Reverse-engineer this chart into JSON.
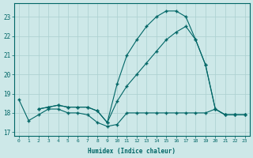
{
  "xlabel": "Humidex (Indice chaleur)",
  "xlim": [
    -0.5,
    23.5
  ],
  "ylim": [
    16.8,
    23.7
  ],
  "yticks": [
    17,
    18,
    19,
    20,
    21,
    22,
    23
  ],
  "xticks": [
    0,
    1,
    2,
    3,
    4,
    5,
    6,
    7,
    8,
    9,
    10,
    11,
    12,
    13,
    14,
    15,
    16,
    17,
    18,
    19,
    20,
    21,
    22,
    23
  ],
  "bg_color": "#cde8e8",
  "line_color": "#006666",
  "grid_color": "#aacfcf",
  "line1_x": [
    0,
    1,
    2,
    3,
    4,
    5,
    6,
    7,
    8,
    9,
    10,
    11,
    12,
    13,
    14,
    15,
    16,
    17,
    18,
    19,
    20,
    21,
    22,
    23
  ],
  "line1_y": [
    18.7,
    17.6,
    17.9,
    18.2,
    18.2,
    18.0,
    18.0,
    17.9,
    17.5,
    17.3,
    17.4,
    18.0,
    18.0,
    18.0,
    18.0,
    18.0,
    18.0,
    18.0,
    18.0,
    18.0,
    18.2,
    17.9,
    17.9,
    17.9
  ],
  "line2_x": [
    2,
    3,
    4,
    5,
    6,
    7,
    8,
    9,
    10,
    11,
    12,
    13,
    14,
    15,
    16,
    17,
    18,
    19,
    20,
    21,
    22,
    23
  ],
  "line2_y": [
    18.2,
    18.3,
    18.4,
    18.3,
    18.3,
    18.3,
    18.1,
    17.5,
    19.5,
    21.0,
    21.8,
    22.5,
    23.0,
    23.3,
    23.3,
    23.0,
    21.8,
    20.5,
    18.2,
    17.9,
    17.9,
    17.9
  ],
  "line3_x": [
    2,
    3,
    4,
    5,
    6,
    7,
    8,
    9,
    10,
    11,
    12,
    13,
    14,
    15,
    16,
    17,
    18,
    19,
    20,
    21,
    22,
    23
  ],
  "line3_y": [
    18.2,
    18.3,
    18.4,
    18.3,
    18.3,
    18.3,
    18.1,
    17.5,
    18.6,
    19.4,
    20.0,
    20.6,
    21.2,
    21.8,
    22.2,
    22.5,
    21.8,
    20.5,
    18.2,
    17.9,
    17.9,
    17.9
  ]
}
